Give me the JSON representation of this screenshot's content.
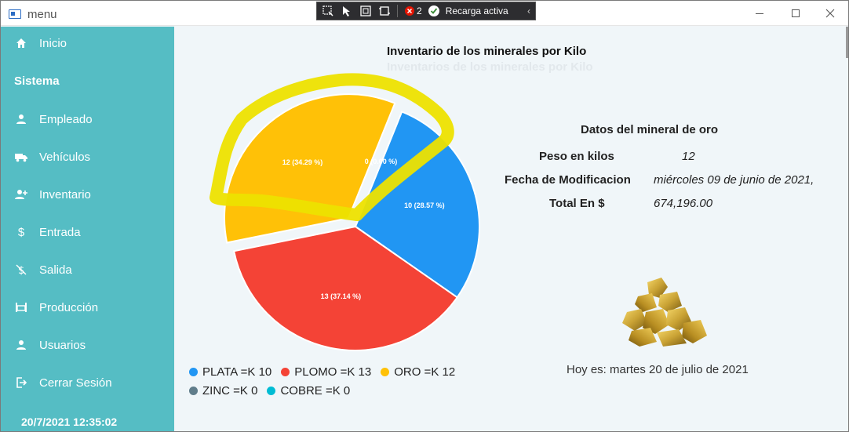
{
  "window": {
    "title": "menu",
    "devbar": {
      "counter": "2",
      "reload_label": "Recarga activa"
    }
  },
  "sidebar": {
    "section": "Sistema",
    "items": [
      {
        "label": "Inicio",
        "icon": "home-icon"
      },
      {
        "label": "Empleado",
        "icon": "user-icon"
      },
      {
        "label": "Vehículos",
        "icon": "truck-icon"
      },
      {
        "label": "Inventario",
        "icon": "user-add-icon"
      },
      {
        "label": "Entrada",
        "icon": "dollar-icon"
      },
      {
        "label": "Salida",
        "icon": "no-dollar-icon"
      },
      {
        "label": "Producción",
        "icon": "factory-icon"
      },
      {
        "label": "Usuarios",
        "icon": "user-icon"
      },
      {
        "label": "Cerrar Sesión",
        "icon": "logout-icon"
      }
    ],
    "datetime": "20/7/2021 12:35:02"
  },
  "chart_data": {
    "type": "pie",
    "title": "Inventario de los minerales por Kilo",
    "subtitle": "Inventarios de los minerales por Kilo",
    "categories": [
      "PLATA",
      "PLOMO",
      "ORO",
      "ZINC",
      "COBRE"
    ],
    "values": [
      10,
      13,
      12,
      0,
      0
    ],
    "slice_labels": [
      "10 (28.57 %)",
      "13 (37.14 %)",
      "12 (34.29 %)",
      "0 (0.00 %)",
      "0 (0.00 %)"
    ],
    "legend": [
      "PLATA =K 10",
      "PLOMO =K 13",
      "ORO =K 12",
      "ZINC =K 0",
      "COBRE =K 0"
    ],
    "colors": [
      "#2196f3",
      "#f44336",
      "#ffc107",
      "#607d8b",
      "#00bcd4"
    ],
    "highlight_color": "#ede100",
    "legend_position": "bottom"
  },
  "info": {
    "heading": "Datos del mineral de oro",
    "weight_label": "Peso en kilos",
    "weight_value": "12",
    "date_label": "Fecha de Modificacion",
    "date_value": "miércoles 09 de junio de 2021,",
    "total_label": "Total En $",
    "total_value": "674,196.00"
  },
  "today": "Hoy es: martes 20 de julio de 2021"
}
